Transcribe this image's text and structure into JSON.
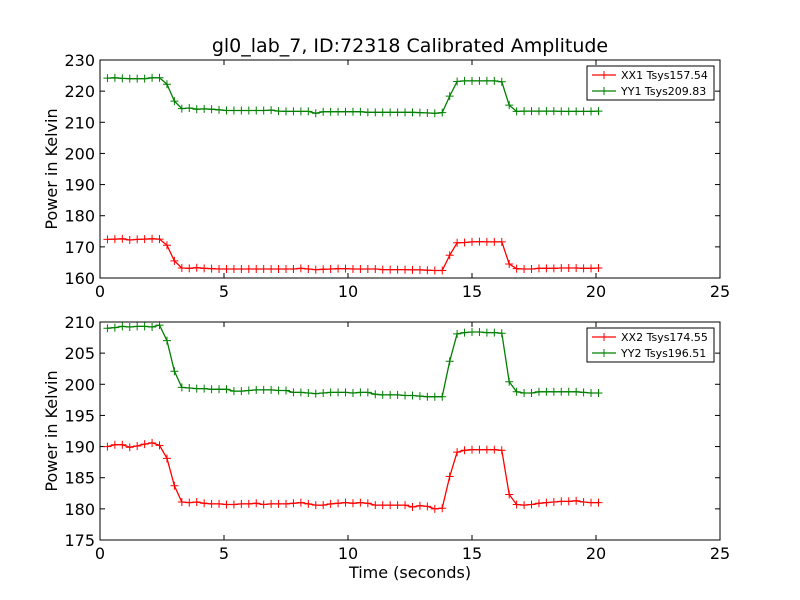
{
  "title": "gl0_lab_7, ID:72318 Calibrated Amplitude",
  "colors": {
    "red": "#ff0000",
    "green": "#008000"
  },
  "chart_data": [
    {
      "type": "line",
      "ylabel": "Power in Kelvin",
      "xlabel": "",
      "xlim": [
        0,
        25
      ],
      "ylim": [
        160,
        230
      ],
      "xticks": [
        0,
        5,
        10,
        15,
        20,
        25
      ],
      "yticks": [
        160,
        170,
        180,
        190,
        200,
        210,
        220,
        230
      ],
      "legend_position": "top-right",
      "grid": false,
      "x": [
        0.3,
        0.6,
        0.9,
        1.2,
        1.5,
        1.8,
        2.1,
        2.4,
        2.7,
        3.0,
        3.3,
        3.6,
        3.9,
        4.2,
        4.5,
        4.8,
        5.1,
        5.4,
        5.7,
        6.0,
        6.3,
        6.6,
        6.9,
        7.2,
        7.5,
        7.8,
        8.1,
        8.4,
        8.7,
        9.0,
        9.3,
        9.6,
        9.9,
        10.2,
        10.5,
        10.8,
        11.1,
        11.4,
        11.7,
        12.0,
        12.3,
        12.6,
        12.9,
        13.2,
        13.5,
        13.8,
        14.1,
        14.4,
        14.7,
        15.0,
        15.3,
        15.6,
        15.9,
        16.2,
        16.5,
        16.8,
        17.1,
        17.4,
        17.7,
        18.0,
        18.3,
        18.6,
        18.9,
        19.2,
        19.5,
        19.8,
        20.1
      ],
      "series": [
        {
          "name": "XX1 Tsys157.54",
          "color": "#ff0000",
          "values": [
            172.4,
            172.5,
            172.6,
            172.2,
            172.4,
            172.5,
            172.6,
            172.5,
            170.5,
            165.5,
            163.2,
            163.1,
            163.3,
            163.1,
            163.0,
            162.9,
            162.9,
            162.9,
            162.9,
            162.9,
            162.9,
            162.9,
            162.9,
            162.9,
            162.9,
            162.9,
            163.1,
            162.9,
            162.7,
            162.8,
            162.9,
            163.0,
            163.0,
            162.9,
            162.9,
            162.9,
            162.9,
            162.7,
            162.7,
            162.7,
            162.7,
            162.6,
            162.6,
            162.5,
            162.4,
            162.4,
            167.3,
            171.3,
            171.4,
            171.6,
            171.7,
            171.6,
            171.6,
            171.6,
            164.5,
            163.0,
            162.9,
            162.9,
            163.1,
            163.1,
            163.1,
            163.2,
            163.2,
            163.2,
            163.1,
            163.1,
            163.2
          ]
        },
        {
          "name": "YY1 Tsys209.83",
          "color": "#008000",
          "values": [
            224.2,
            224.3,
            224.1,
            224.0,
            224.0,
            224.0,
            224.3,
            224.3,
            222.2,
            216.8,
            214.4,
            214.6,
            214.2,
            214.3,
            214.2,
            214.0,
            213.8,
            213.8,
            213.8,
            213.8,
            213.8,
            213.8,
            213.9,
            213.6,
            213.5,
            213.5,
            213.5,
            213.5,
            212.9,
            213.4,
            213.4,
            213.4,
            213.4,
            213.4,
            213.4,
            213.2,
            213.2,
            213.2,
            213.2,
            213.2,
            213.2,
            213.2,
            213.1,
            213.0,
            212.9,
            213.1,
            218.4,
            223.1,
            223.3,
            223.3,
            223.3,
            223.3,
            223.3,
            223.0,
            215.5,
            213.5,
            213.6,
            213.6,
            213.6,
            213.6,
            213.6,
            213.5,
            213.5,
            213.5,
            213.5,
            213.5,
            213.6
          ]
        }
      ]
    },
    {
      "type": "line",
      "ylabel": "Power in Kelvin",
      "xlabel": "Time (seconds)",
      "xlim": [
        0,
        25
      ],
      "ylim": [
        175,
        210
      ],
      "xticks": [
        0,
        5,
        10,
        15,
        20,
        25
      ],
      "yticks": [
        175,
        180,
        185,
        190,
        195,
        200,
        205,
        210
      ],
      "legend_position": "top-right",
      "grid": false,
      "x": [
        0.3,
        0.6,
        0.9,
        1.2,
        1.5,
        1.8,
        2.1,
        2.4,
        2.7,
        3.0,
        3.3,
        3.6,
        3.9,
        4.2,
        4.5,
        4.8,
        5.1,
        5.4,
        5.7,
        6.0,
        6.3,
        6.6,
        6.9,
        7.2,
        7.5,
        7.8,
        8.1,
        8.4,
        8.7,
        9.0,
        9.3,
        9.6,
        9.9,
        10.2,
        10.5,
        10.8,
        11.1,
        11.4,
        11.7,
        12.0,
        12.3,
        12.6,
        12.9,
        13.2,
        13.5,
        13.8,
        14.1,
        14.4,
        14.7,
        15.0,
        15.3,
        15.6,
        15.9,
        16.2,
        16.5,
        16.8,
        17.1,
        17.4,
        17.7,
        18.0,
        18.3,
        18.6,
        18.9,
        19.2,
        19.5,
        19.8,
        20.1
      ],
      "series": [
        {
          "name": "XX2 Tsys174.55",
          "color": "#ff0000",
          "values": [
            190.0,
            190.3,
            190.3,
            189.9,
            190.1,
            190.4,
            190.6,
            190.2,
            188.1,
            183.7,
            181.1,
            181.0,
            181.1,
            180.9,
            180.8,
            180.8,
            180.7,
            180.7,
            180.8,
            180.8,
            180.9,
            180.7,
            180.8,
            180.8,
            180.8,
            180.9,
            181.0,
            180.8,
            180.6,
            180.6,
            180.8,
            180.9,
            181.0,
            180.9,
            181.0,
            180.9,
            180.6,
            180.6,
            180.6,
            180.6,
            180.6,
            180.3,
            180.5,
            180.4,
            180.0,
            180.1,
            185.2,
            189.1,
            189.4,
            189.5,
            189.5,
            189.5,
            189.5,
            189.4,
            182.3,
            180.7,
            180.6,
            180.7,
            180.9,
            181.0,
            181.1,
            181.2,
            181.2,
            181.3,
            181.1,
            181.0,
            181.0
          ]
        },
        {
          "name": "YY2 Tsys196.51",
          "color": "#008000",
          "values": [
            209.0,
            209.1,
            209.3,
            209.2,
            209.3,
            209.3,
            209.2,
            209.5,
            207.0,
            202.1,
            199.5,
            199.4,
            199.3,
            199.3,
            199.2,
            199.2,
            199.2,
            198.9,
            198.9,
            199.0,
            199.1,
            199.1,
            199.1,
            199.0,
            199.0,
            198.7,
            198.7,
            198.6,
            198.5,
            198.6,
            198.7,
            198.7,
            198.7,
            198.6,
            198.7,
            198.7,
            198.4,
            198.3,
            198.3,
            198.3,
            198.2,
            198.2,
            198.1,
            198.0,
            198.0,
            198.0,
            203.7,
            208.1,
            208.3,
            208.4,
            208.4,
            208.3,
            208.3,
            208.2,
            200.4,
            198.8,
            198.6,
            198.6,
            198.8,
            198.8,
            198.8,
            198.8,
            198.8,
            198.8,
            198.7,
            198.6,
            198.6
          ]
        }
      ]
    }
  ]
}
